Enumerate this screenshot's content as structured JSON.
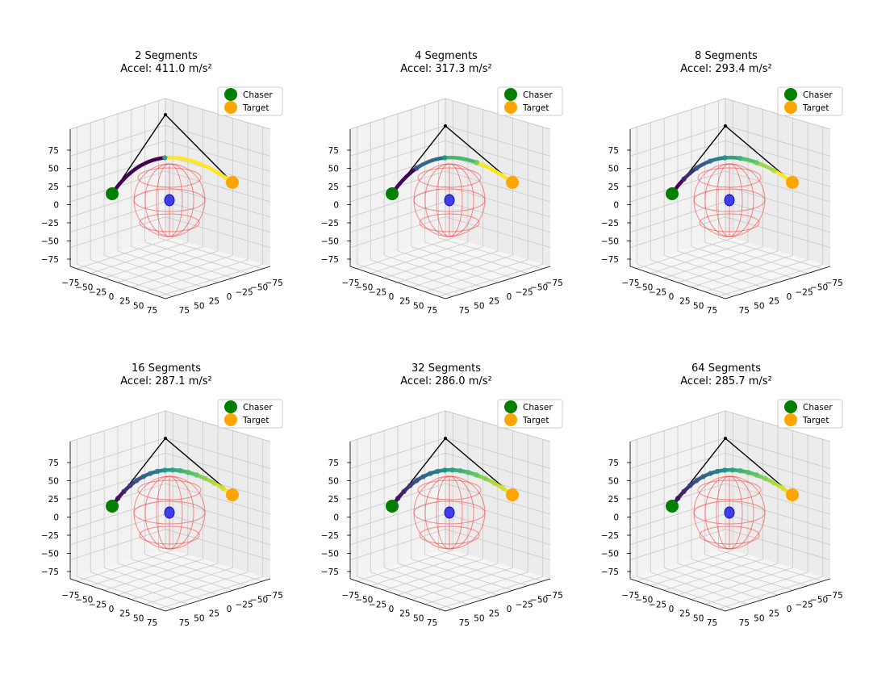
{
  "figure": {
    "legend": [
      "Chaser",
      "Target"
    ],
    "colors": {
      "chaser": "#008000",
      "target": "#ffa500",
      "sphere": "#ff3333",
      "center": "#2222ee",
      "guide": "#000000",
      "pane": "#f2f2f2",
      "grid": "#c8c8c8",
      "colormap": [
        "#440154",
        "#3b528b",
        "#21918c",
        "#5ec962",
        "#fde725"
      ]
    }
  },
  "chart_data": [
    {
      "type": "scatter",
      "title_line1": "2 Segments",
      "title_line2": "Accel: 411.0 m/s²",
      "segments": 2,
      "accel": 411.0,
      "zticks": [
        "75",
        "50",
        "25",
        "0",
        "−25",
        "−50",
        "−75"
      ],
      "xticks": [
        "−75",
        "−50",
        "−25",
        "0",
        "25",
        "50",
        "75"
      ],
      "yticks": [
        "75",
        "50",
        "25",
        "0",
        "−25",
        "−50",
        "−75"
      ],
      "xlim": [
        -90,
        90
      ],
      "ylim": [
        -90,
        90
      ],
      "zlim": [
        -90,
        90
      ],
      "grid": true,
      "legend_placement": "upper right"
    },
    {
      "type": "scatter",
      "title_line1": "4 Segments",
      "title_line2": "Accel: 317.3 m/s²",
      "segments": 4,
      "accel": 317.3,
      "zticks": [
        "75",
        "50",
        "25",
        "0",
        "−25",
        "−50",
        "−75"
      ],
      "xticks": [
        "−75",
        "−50",
        "−25",
        "0",
        "25",
        "50",
        "75"
      ],
      "yticks": [
        "75",
        "50",
        "25",
        "0",
        "−25",
        "−50",
        "−75"
      ],
      "xlim": [
        -90,
        90
      ],
      "ylim": [
        -90,
        90
      ],
      "zlim": [
        -90,
        90
      ],
      "grid": true,
      "legend_placement": "upper right"
    },
    {
      "type": "scatter",
      "title_line1": "8 Segments",
      "title_line2": "Accel: 293.4 m/s²",
      "segments": 8,
      "accel": 293.4,
      "zticks": [
        "75",
        "50",
        "25",
        "0",
        "−25",
        "−50",
        "−75"
      ],
      "xticks": [
        "−75",
        "−50",
        "−25",
        "0",
        "25",
        "50",
        "75"
      ],
      "yticks": [
        "75",
        "50",
        "25",
        "0",
        "−25",
        "−50",
        "−75"
      ],
      "xlim": [
        -90,
        90
      ],
      "ylim": [
        -90,
        90
      ],
      "zlim": [
        -90,
        90
      ],
      "grid": true,
      "legend_placement": "upper right"
    },
    {
      "type": "scatter",
      "title_line1": "16 Segments",
      "title_line2": "Accel: 287.1 m/s²",
      "segments": 16,
      "accel": 287.1,
      "zticks": [
        "75",
        "50",
        "25",
        "0",
        "−25",
        "−50",
        "−75"
      ],
      "xticks": [
        "−75",
        "−50",
        "−25",
        "0",
        "25",
        "50",
        "75"
      ],
      "yticks": [
        "75",
        "50",
        "25",
        "0",
        "−25",
        "−50",
        "−75"
      ],
      "xlim": [
        -90,
        90
      ],
      "ylim": [
        -90,
        90
      ],
      "zlim": [
        -90,
        90
      ],
      "grid": true,
      "legend_placement": "upper right"
    },
    {
      "type": "scatter",
      "title_line1": "32 Segments",
      "title_line2": "Accel: 286.0 m/s²",
      "segments": 32,
      "accel": 286.0,
      "zticks": [
        "75",
        "50",
        "25",
        "0",
        "−25",
        "−50",
        "−75"
      ],
      "xticks": [
        "−75",
        "−50",
        "−25",
        "0",
        "25",
        "50",
        "75"
      ],
      "yticks": [
        "75",
        "50",
        "25",
        "0",
        "−25",
        "−50",
        "−75"
      ],
      "xlim": [
        -90,
        90
      ],
      "ylim": [
        -90,
        90
      ],
      "zlim": [
        -90,
        90
      ],
      "grid": true,
      "legend_placement": "upper right"
    },
    {
      "type": "scatter",
      "title_line1": "64 Segments",
      "title_line2": "Accel: 285.7 m/s²",
      "segments": 64,
      "accel": 285.7,
      "zticks": [
        "75",
        "50",
        "25",
        "0",
        "−25",
        "−50",
        "−75"
      ],
      "xticks": [
        "−75",
        "−50",
        "−25",
        "0",
        "25",
        "50",
        "75"
      ],
      "yticks": [
        "75",
        "50",
        "25",
        "0",
        "−25",
        "−50",
        "−75"
      ],
      "xlim": [
        -90,
        90
      ],
      "ylim": [
        -90,
        90
      ],
      "zlim": [
        -90,
        90
      ],
      "grid": true,
      "legend_placement": "upper right"
    }
  ]
}
